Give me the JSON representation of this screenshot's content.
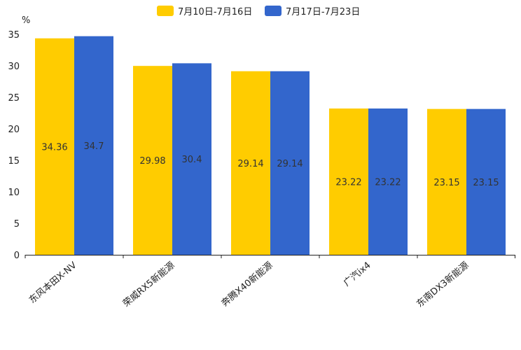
{
  "chart_data": {
    "type": "bar",
    "ylabel": "%",
    "ylim": [
      0,
      35
    ],
    "yticks": [
      0,
      5,
      10,
      15,
      20,
      25,
      30,
      35
    ],
    "categories": [
      "东风本田X-NV",
      "荣威RX5新能源",
      "奔腾X40新能源",
      "广汽ix4",
      "东南DX3新能源"
    ],
    "series": [
      {
        "name": "7月10日-7月16日",
        "color": "#ffcc00",
        "values": [
          34.36,
          29.98,
          29.14,
          23.22,
          23.15
        ]
      },
      {
        "name": "7月17日-7月23日",
        "color": "#3366cc",
        "values": [
          34.7,
          30.4,
          29.14,
          23.22,
          23.15
        ]
      }
    ],
    "legend_position": "top-center",
    "grid": false
  }
}
